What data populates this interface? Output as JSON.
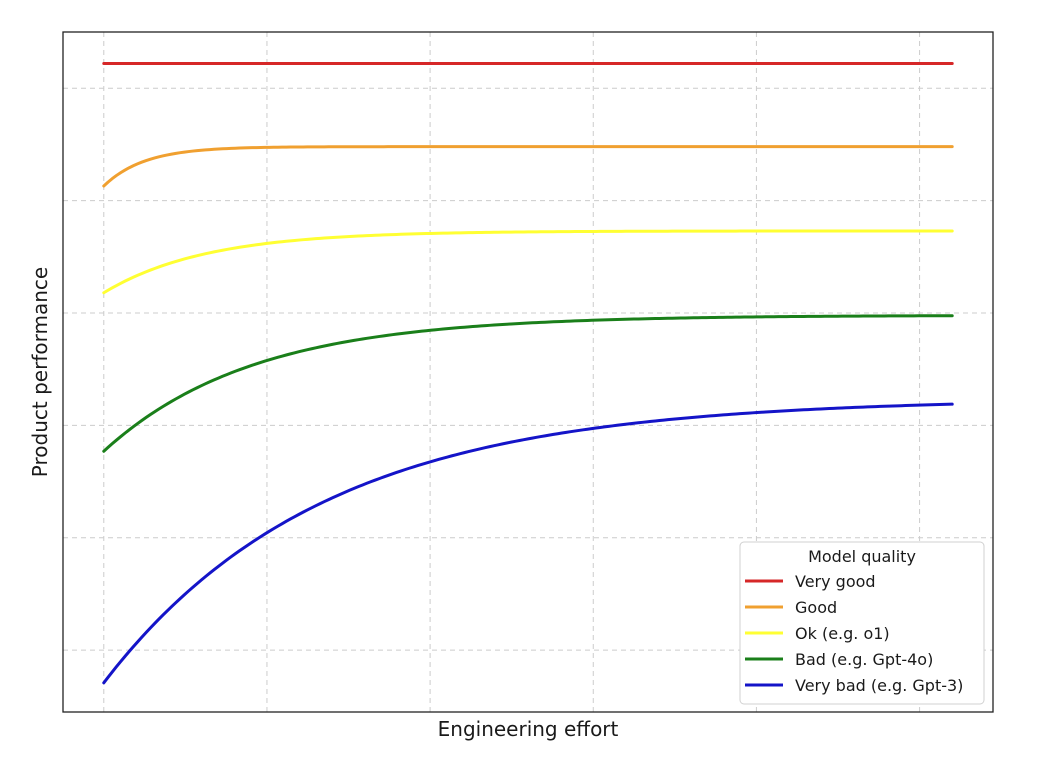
{
  "chart_data": {
    "type": "line",
    "title": "",
    "xlabel": "Engineering effort",
    "ylabel": "Product performance",
    "xlim": [
      -0.25,
      5.45
    ],
    "ylim": [
      0.2,
      6.25
    ],
    "grid": true,
    "x_ticks": [
      0,
      1,
      2,
      3,
      4,
      5
    ],
    "y_ticks": [
      0.75,
      1.75,
      2.75,
      3.75,
      4.75,
      5.75
    ],
    "x_range": [
      0,
      5.2
    ],
    "legend": {
      "title": "Model quality",
      "placement": "lower-right"
    },
    "series": [
      {
        "name": "Very good",
        "color": "#d62728",
        "asymptote": 5.97,
        "start": 5.97,
        "rate": 1.0
      },
      {
        "name": "Good",
        "color": "#f0a030",
        "asymptote": 5.23,
        "start": 4.88,
        "rate": 4.0
      },
      {
        "name": "Ok (e.g. o1)",
        "color": "#ffff33",
        "asymptote": 4.48,
        "start": 3.93,
        "rate": 1.6
      },
      {
        "name": "Bad (e.g. Gpt-4o)",
        "color": "#1a7f1a",
        "asymptote": 3.73,
        "start": 2.52,
        "rate": 1.1
      },
      {
        "name": "Very bad (e.g. Gpt-3)",
        "color": "#1414c8",
        "asymptote": 2.99,
        "start": 0.46,
        "rate": 0.75
      }
    ]
  }
}
